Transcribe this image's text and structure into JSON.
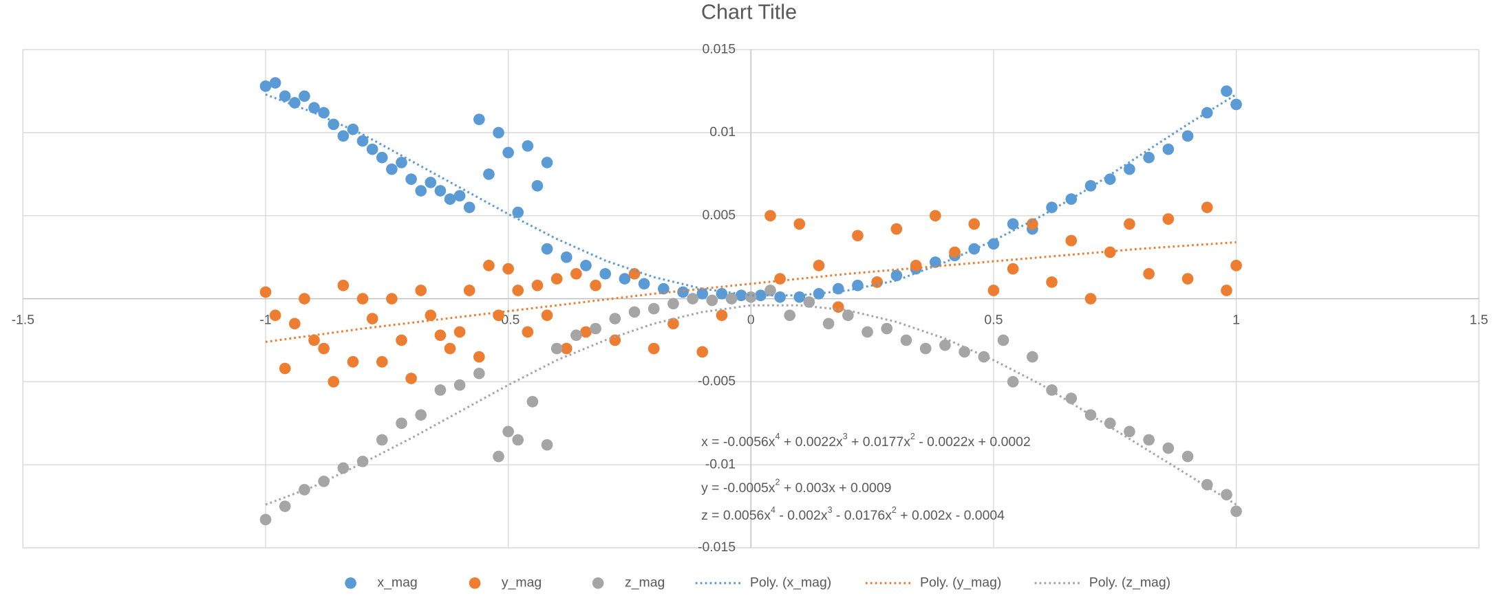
{
  "chart_data": {
    "type": "scatter",
    "title": "Chart Title",
    "xlim": [
      -1.5,
      1.5
    ],
    "xticks": [
      -1.5,
      -1,
      -0.5,
      0,
      0.5,
      1,
      1.5
    ],
    "ylim": [
      -0.015,
      0.015
    ],
    "yticks": [
      0.015,
      0.01,
      0.005,
      0,
      -0.005,
      -0.01,
      -0.015
    ],
    "grid": true,
    "legend": "bottom",
    "series": [
      {
        "name": "x_mag",
        "color": "#5b9bd5",
        "x": [
          -1,
          -0.98,
          -0.96,
          -0.94,
          -0.92,
          -0.9,
          -0.88,
          -0.86,
          -0.84,
          -0.82,
          -0.8,
          -0.78,
          -0.76,
          -0.74,
          -0.72,
          -0.7,
          -0.68,
          -0.66,
          -0.64,
          -0.62,
          -0.6,
          -0.58,
          -0.56,
          -0.54,
          -0.52,
          -0.5,
          -0.48,
          -0.46,
          -0.44,
          -0.42,
          -0.42,
          -0.38,
          -0.34,
          -0.3,
          -0.26,
          -0.22,
          -0.18,
          -0.14,
          -0.1,
          -0.06,
          -0.02,
          0.02,
          0.06,
          0.1,
          0.14,
          0.18,
          0.22,
          0.26,
          0.3,
          0.34,
          0.38,
          0.42,
          0.46,
          0.5,
          0.54,
          0.58,
          0.62,
          0.66,
          0.7,
          0.74,
          0.78,
          0.82,
          0.86,
          0.9,
          0.94,
          0.98,
          1
        ],
        "values": [
          0.0128,
          0.013,
          0.0122,
          0.0118,
          0.0122,
          0.0115,
          0.0112,
          0.0105,
          0.0098,
          0.0102,
          0.0095,
          0.009,
          0.0085,
          0.0078,
          0.0082,
          0.0072,
          0.0065,
          0.007,
          0.0065,
          0.006,
          0.0062,
          0.0055,
          0.0108,
          0.0075,
          0.01,
          0.0088,
          0.0052,
          0.0092,
          0.0068,
          0.0082,
          0.003,
          0.0025,
          0.002,
          0.0015,
          0.0012,
          0.0009,
          0.0006,
          0.0004,
          0.0003,
          0.0003,
          0.0002,
          0.0002,
          0.0001,
          0.0001,
          0.0003,
          0.0006,
          0.0008,
          0.001,
          0.0014,
          0.0018,
          0.0022,
          0.0026,
          0.003,
          0.0033,
          0.0045,
          0.0042,
          0.0055,
          0.006,
          0.0068,
          0.0072,
          0.0078,
          0.0085,
          0.009,
          0.0098,
          0.0112,
          0.0125,
          0.0117
        ]
      },
      {
        "name": "y_mag",
        "color": "#ed7d31",
        "x": [
          -1,
          -0.98,
          -0.96,
          -0.94,
          -0.92,
          -0.9,
          -0.88,
          -0.86,
          -0.84,
          -0.82,
          -0.8,
          -0.78,
          -0.76,
          -0.74,
          -0.72,
          -0.7,
          -0.68,
          -0.66,
          -0.64,
          -0.62,
          -0.6,
          -0.58,
          -0.56,
          -0.54,
          -0.52,
          -0.5,
          -0.48,
          -0.46,
          -0.44,
          -0.42,
          -0.4,
          -0.38,
          -0.36,
          -0.34,
          -0.32,
          -0.28,
          -0.24,
          -0.2,
          -0.16,
          -0.1,
          -0.06,
          0.04,
          0.06,
          0.1,
          0.14,
          0.18,
          0.22,
          0.26,
          0.3,
          0.34,
          0.38,
          0.42,
          0.46,
          0.5,
          0.54,
          0.58,
          0.62,
          0.66,
          0.7,
          0.74,
          0.78,
          0.82,
          0.86,
          0.9,
          0.94,
          0.98,
          1
        ],
        "values": [
          0.0004,
          -0.001,
          -0.0042,
          -0.0015,
          0,
          -0.0025,
          -0.003,
          -0.005,
          0.0008,
          -0.0038,
          0,
          -0.0012,
          -0.0038,
          0,
          -0.0025,
          -0.0048,
          0.0005,
          -0.001,
          -0.0022,
          -0.003,
          -0.002,
          0.0005,
          -0.0035,
          0.002,
          -0.001,
          0.0018,
          0.0005,
          -0.002,
          0.0008,
          -0.001,
          0.0012,
          -0.003,
          0.0015,
          -0.002,
          0.0008,
          -0.0025,
          0.0015,
          -0.003,
          -0.0015,
          -0.0032,
          -0.001,
          0.005,
          0.0012,
          0.0045,
          0.002,
          -0.0005,
          0.0038,
          0.001,
          0.0042,
          0.002,
          0.005,
          0.0028,
          0.0045,
          0.0005,
          0.0018,
          0.0045,
          0.001,
          0.0035,
          0,
          0.0028,
          0.0045,
          0.0015,
          0.0048,
          0.0012,
          0.0055,
          0.0005,
          0.002
        ]
      },
      {
        "name": "z_mag",
        "color": "#a5a5a5",
        "x": [
          -1,
          -0.96,
          -0.92,
          -0.88,
          -0.84,
          -0.8,
          -0.76,
          -0.72,
          -0.68,
          -0.64,
          -0.6,
          -0.56,
          -0.52,
          -0.5,
          -0.48,
          -0.45,
          -0.42,
          -0.4,
          -0.36,
          -0.32,
          -0.28,
          -0.24,
          -0.2,
          -0.16,
          -0.12,
          -0.08,
          -0.04,
          0,
          0.04,
          0.08,
          0.12,
          0.16,
          0.2,
          0.24,
          0.28,
          0.32,
          0.36,
          0.4,
          0.44,
          0.48,
          0.52,
          0.54,
          0.58,
          0.62,
          0.66,
          0.7,
          0.74,
          0.78,
          0.82,
          0.86,
          0.9,
          0.94,
          0.98,
          1
        ],
        "values": [
          -0.0133,
          -0.0125,
          -0.0115,
          -0.011,
          -0.0102,
          -0.0098,
          -0.0085,
          -0.0075,
          -0.007,
          -0.0055,
          -0.0052,
          -0.0045,
          -0.0095,
          -0.008,
          -0.0085,
          -0.0062,
          -0.0088,
          -0.003,
          -0.0022,
          -0.0018,
          -0.0012,
          -0.0008,
          -0.0006,
          -0.0003,
          0,
          -0.0001,
          0,
          0.0001,
          0.0005,
          -0.001,
          -0.0002,
          -0.0015,
          -0.001,
          -0.002,
          -0.0018,
          -0.0025,
          -0.003,
          -0.0028,
          -0.0032,
          -0.0035,
          -0.0025,
          -0.005,
          -0.0035,
          -0.0055,
          -0.006,
          -0.007,
          -0.0075,
          -0.008,
          -0.0085,
          -0.009,
          -0.0095,
          -0.0112,
          -0.0118,
          -0.0128
        ]
      }
    ],
    "trendlines": [
      {
        "name": "Poly. (x_mag)",
        "color": "#5b9bd5",
        "x": [
          -1,
          -0.9,
          -0.8,
          -0.7,
          -0.6,
          -0.5,
          -0.4,
          -0.3,
          -0.2,
          -0.1,
          0,
          0.1,
          0.2,
          0.3,
          0.4,
          0.5,
          0.6,
          0.7,
          0.8,
          0.9,
          1
        ],
        "values": [
          0.0123,
          0.0112,
          0.0099,
          0.0083,
          0.0067,
          0.0051,
          0.0036,
          0.0023,
          0.0013,
          0.0006,
          0.0002,
          0.0002,
          0.0005,
          0.0011,
          0.0022,
          0.0035,
          0.005,
          0.0067,
          0.0086,
          0.0105,
          0.0123
        ]
      },
      {
        "name": "Poly. (y_mag)",
        "color": "#ed7d31",
        "x": [
          -1,
          -0.8,
          -0.6,
          -0.4,
          -0.2,
          0,
          0.2,
          0.4,
          0.6,
          0.8,
          1
        ],
        "values": [
          -0.0026,
          -0.0018,
          -0.0011,
          -0.0004,
          0.0003,
          0.0009,
          0.0015,
          0.002,
          0.0025,
          0.003,
          0.0034
        ]
      },
      {
        "name": "Poly. (z_mag)",
        "color": "#a5a5a5",
        "x": [
          -1,
          -0.9,
          -0.8,
          -0.7,
          -0.6,
          -0.5,
          -0.4,
          -0.3,
          -0.2,
          -0.1,
          0,
          0.1,
          0.2,
          0.3,
          0.4,
          0.5,
          0.6,
          0.7,
          0.8,
          0.9,
          1
        ],
        "values": [
          -0.0124,
          -0.0113,
          -0.0099,
          -0.0084,
          -0.0068,
          -0.0052,
          -0.0037,
          -0.0025,
          -0.0015,
          -0.0008,
          -0.0004,
          -0.0004,
          -0.0007,
          -0.0014,
          -0.0024,
          -0.0037,
          -0.0052,
          -0.007,
          -0.0088,
          -0.0106,
          -0.0124
        ]
      }
    ],
    "annotations": [
      [
        "x = -0.0056x",
        "4",
        " + 0.0022x",
        "3",
        " + 0.0177x",
        "2",
        " - 0.0022x + 0.0002"
      ],
      [
        "y = -0.0005x",
        "2",
        " + 0.003x + 0.0009"
      ],
      [
        "z = 0.0056x",
        "4",
        " - 0.002x",
        "3",
        " - 0.0176x",
        "2",
        " + 0.002x - 0.0004"
      ]
    ]
  }
}
